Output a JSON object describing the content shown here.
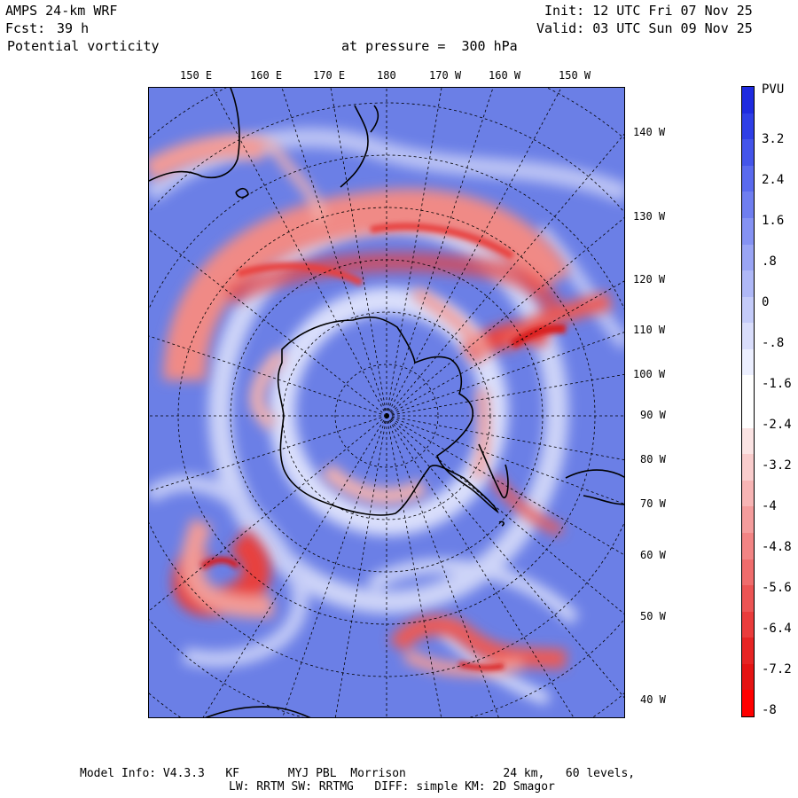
{
  "header": {
    "model": "AMPS 24-km WRF",
    "fcst_label": "Fcst:",
    "fcst_value": "39 h",
    "field": "Potential vorticity",
    "pressure": "at pressure =  300 hPa",
    "init": "Init: 12 UTC Fri 07 Nov 25",
    "valid": "Valid: 03 UTC Sun 09 Nov 25"
  },
  "top_lon_labels": [
    "150 E",
    "160 E",
    "170 E",
    "180",
    "170 W",
    "160 W",
    "150 W"
  ],
  "right_lon_labels": [
    "140 W",
    "130 W",
    "120 W",
    "110 W",
    "100 W",
    "90 W",
    "80 W",
    "70 W",
    "60 W",
    "50 W",
    "40 W"
  ],
  "colorbar": {
    "title": "PVU",
    "ticks": [
      "3.2",
      "2.4",
      "1.6",
      ".8",
      "0",
      "-.8",
      "-1.6",
      "-2.4",
      "-3.2",
      "-4",
      "-4.8",
      "-5.6",
      "-6.4",
      "-7.2",
      "-8"
    ],
    "colors_top_to_bottom": [
      "#1f2be0",
      "#2f3fe6",
      "#4455ea",
      "#5a6aee",
      "#6f7ef0",
      "#8592f3",
      "#9aa5f5",
      "#afb8f7",
      "#c4cbf9",
      "#d9ddfb",
      "#ecefff",
      "#ffffff",
      "#ffffff",
      "#fbe3e3",
      "#f9cccc",
      "#f7b4b4",
      "#f49c9c",
      "#f28484",
      "#ef6c6c",
      "#ec5454",
      "#ea3c3c",
      "#e62424",
      "#e41414",
      "#ff0000"
    ],
    "colors": {
      "ocean_blue": "#6b7fe6",
      "high_red": "#e8403c"
    }
  },
  "footer": {
    "line1": "Model Info: V4.3.3   KF       MYJ PBL  Morrison              24 km,   60 levels,",
    "line2": "LW: RRTM SW: RRTMG   DIFF: simple KM: 2D Smagor"
  }
}
